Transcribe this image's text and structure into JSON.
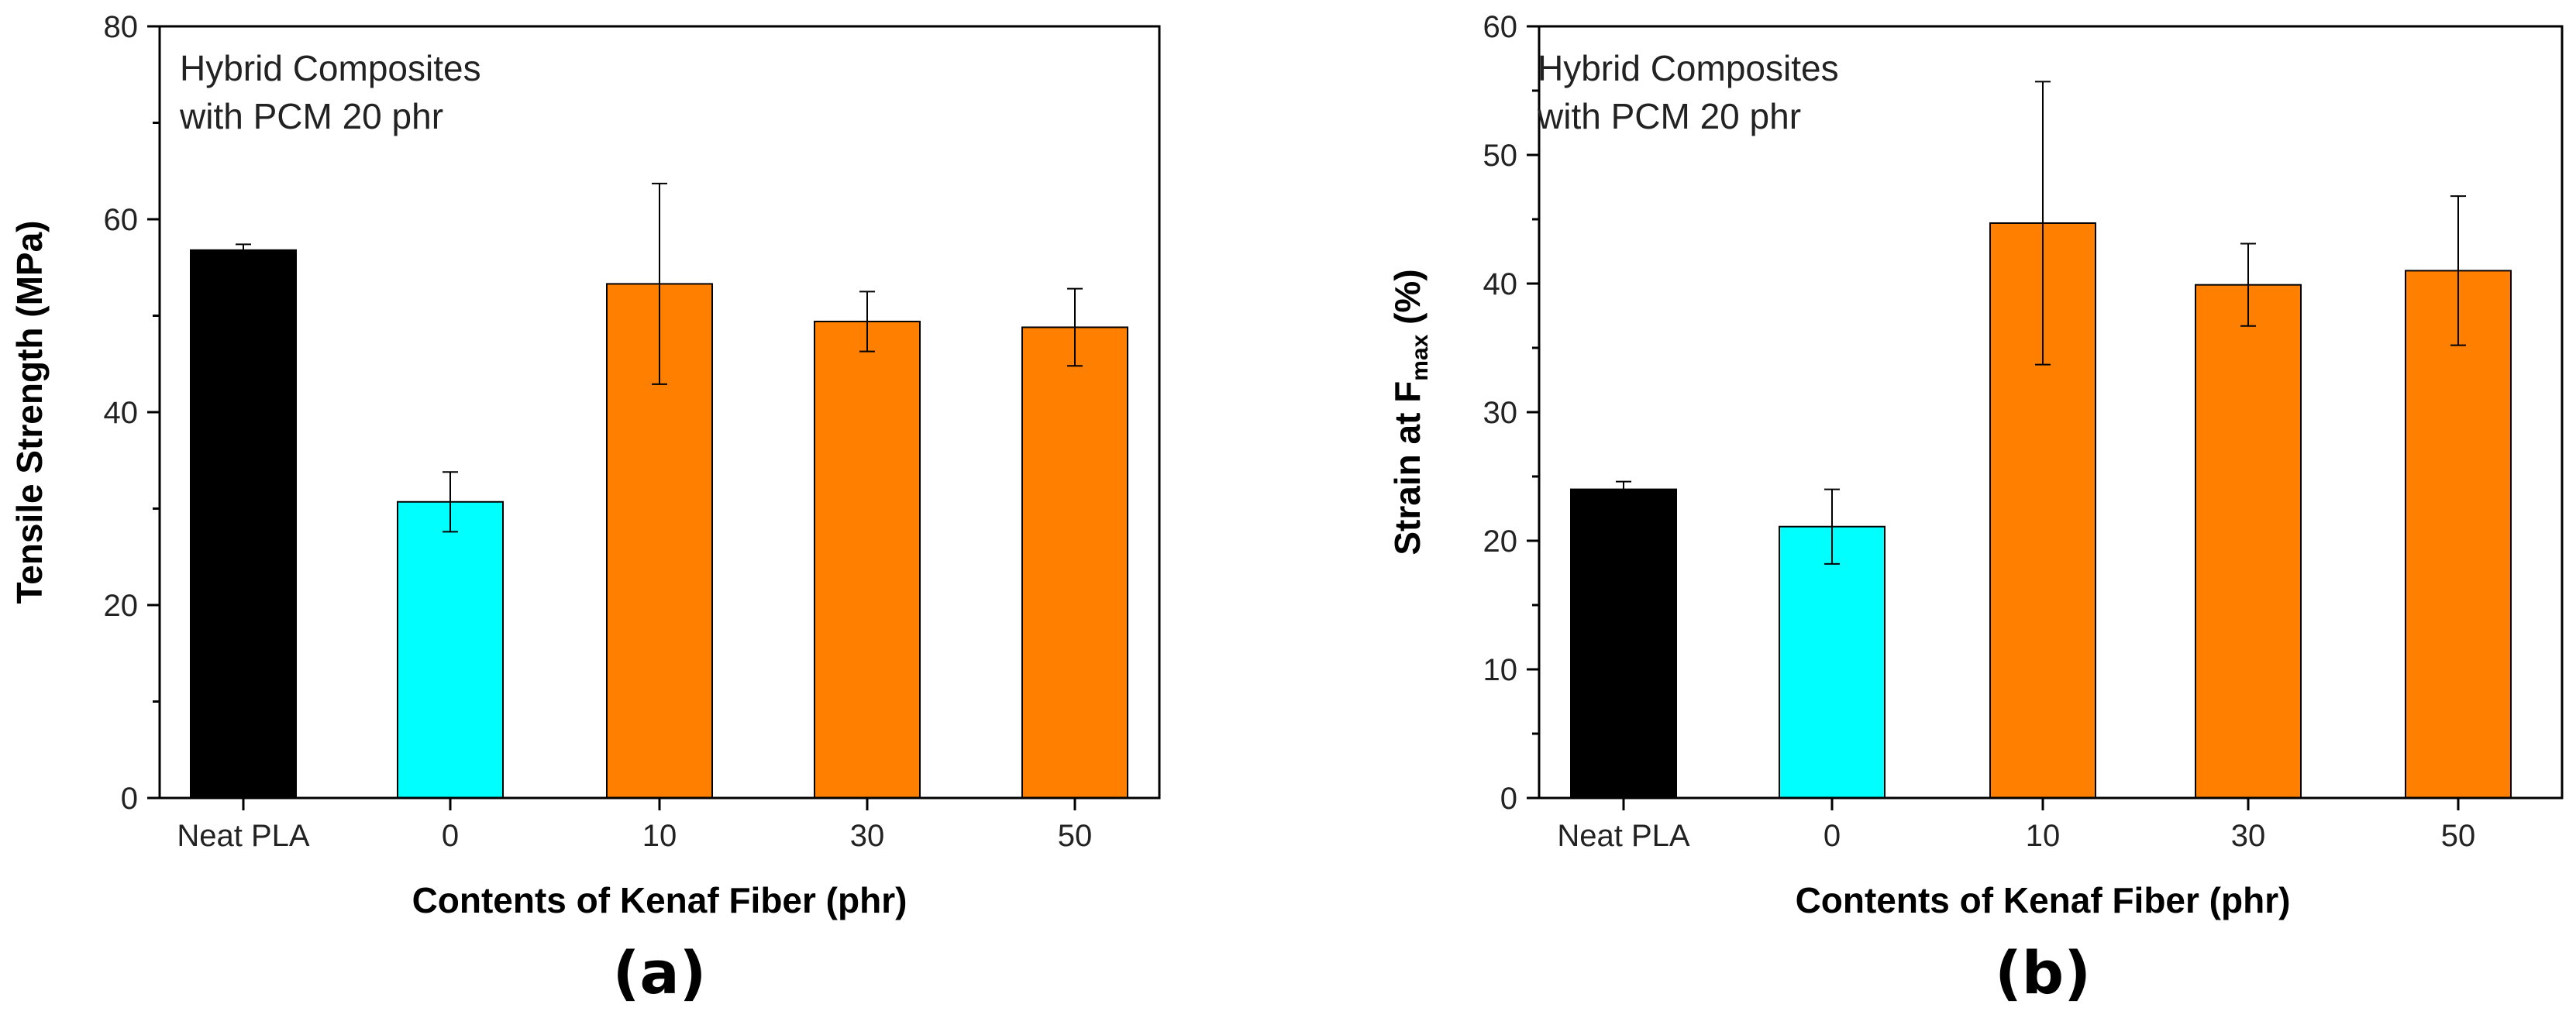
{
  "colors": {
    "neat": "#000000",
    "zero": "#00FFFF",
    "kenaf": "#FF7F00",
    "bar_edge": "#000000",
    "axis": "#000000",
    "errorbar": "#000000"
  },
  "chart_data": [
    {
      "type": "bar",
      "panel_label": "(a)",
      "annotation": [
        "Hybrid Composites",
        "with PCM 20 phr"
      ],
      "categories": [
        "Neat PLA",
        "0",
        "10",
        "30",
        "50"
      ],
      "values": [
        56.8,
        30.7,
        53.3,
        49.4,
        48.8
      ],
      "errors": [
        0.6,
        3.1,
        10.4,
        3.1,
        4.0
      ],
      "bar_colors": [
        "neat",
        "zero",
        "kenaf",
        "kenaf",
        "kenaf"
      ],
      "xlabel": "Contents of Kenaf Fiber (phr)",
      "ylabel": "Tensile Strength (MPa)",
      "ylim": [
        0,
        80
      ],
      "yticks": [
        0,
        20,
        40,
        60,
        80
      ],
      "ytick_labels": [
        "0",
        "20",
        "40",
        "60",
        "80"
      ],
      "grid": false
    },
    {
      "type": "bar",
      "panel_label": "(b)",
      "annotation": [
        "Hybrid Composites",
        "with PCM 20 phr"
      ],
      "categories": [
        "Neat PLA",
        "0",
        "10",
        "30",
        "50"
      ],
      "values": [
        24.0,
        21.1,
        44.7,
        39.9,
        41.0
      ],
      "errors": [
        0.6,
        2.9,
        11.0,
        3.2,
        5.8
      ],
      "bar_colors": [
        "neat",
        "zero",
        "kenaf",
        "kenaf",
        "kenaf"
      ],
      "xlabel": "Contents of Kenaf Fiber (phr)",
      "ylabel": {
        "before": "Strain at F",
        "subscript": "max",
        "after": " (%)"
      },
      "ylim": [
        0,
        60
      ],
      "yticks": [
        0,
        10,
        20,
        30,
        40,
        50,
        60
      ],
      "ytick_labels": [
        "0",
        "10",
        "20",
        "30",
        "40",
        "50",
        "60"
      ],
      "grid": false
    }
  ]
}
